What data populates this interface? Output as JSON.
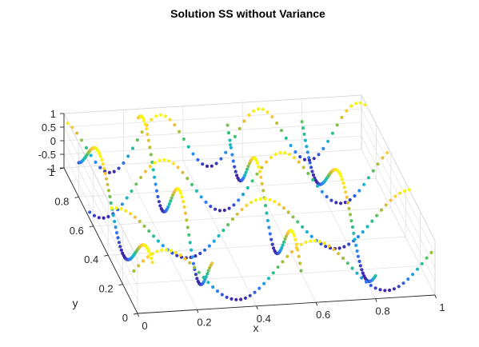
{
  "chart_data": {
    "type": "scatter",
    "title": "Solution SS without Variance",
    "xlabel": "x",
    "ylabel": "y",
    "zlabel": "",
    "xlim": [
      0,
      1
    ],
    "ylim": [
      0,
      1
    ],
    "zlim": [
      -1,
      1
    ],
    "x_ticks": [
      0,
      0.2,
      0.4,
      0.6,
      0.8,
      1
    ],
    "y_ticks": [
      0,
      0.2,
      0.4,
      0.6,
      0.8,
      1
    ],
    "z_ticks": [
      -1,
      -0.5,
      0,
      0.5,
      1
    ],
    "x_tick_labels": [
      "0",
      "0.2",
      "0.4",
      "0.6",
      "0.8",
      "1"
    ],
    "y_tick_labels": [
      "0",
      "0.2",
      "0.4",
      "0.6",
      "0.8",
      "1"
    ],
    "z_tick_labels": [
      "-1",
      "-0.5",
      "0",
      "0.5",
      "1"
    ],
    "grid": true,
    "colormap": "parula",
    "colormap_stops": [
      "#3e26a8",
      "#2f7afb",
      "#17b6d0",
      "#33c27f",
      "#a9bf38",
      "#fcbf3b",
      "#f8fa0d"
    ],
    "series": [
      {
        "direction": "x",
        "at": 0.05,
        "from": 0,
        "to": 1,
        "freq": 2,
        "phase": 0.3
      },
      {
        "direction": "x",
        "at": 0.35,
        "from": 0,
        "to": 1,
        "freq": 2,
        "phase": 1.5
      },
      {
        "direction": "x",
        "at": 0.65,
        "from": 0,
        "to": 1,
        "freq": 2.5,
        "phase": 4.0
      },
      {
        "direction": "x",
        "at": 0.95,
        "from": 0,
        "to": 1,
        "freq": 3,
        "phase": 2.0
      },
      {
        "direction": "y",
        "at": 0.05,
        "from": 0,
        "to": 1,
        "freq": 1.5,
        "phase": 1.0
      },
      {
        "direction": "y",
        "at": 0.25,
        "from": 0,
        "to": 1,
        "freq": 2,
        "phase": 2.4
      },
      {
        "direction": "y",
        "at": 0.55,
        "from": 0,
        "to": 1,
        "freq": 2,
        "phase": 0.2
      },
      {
        "direction": "y",
        "at": 0.8,
        "from": 0,
        "to": 1,
        "freq": 1.5,
        "phase": 3.3
      }
    ]
  }
}
